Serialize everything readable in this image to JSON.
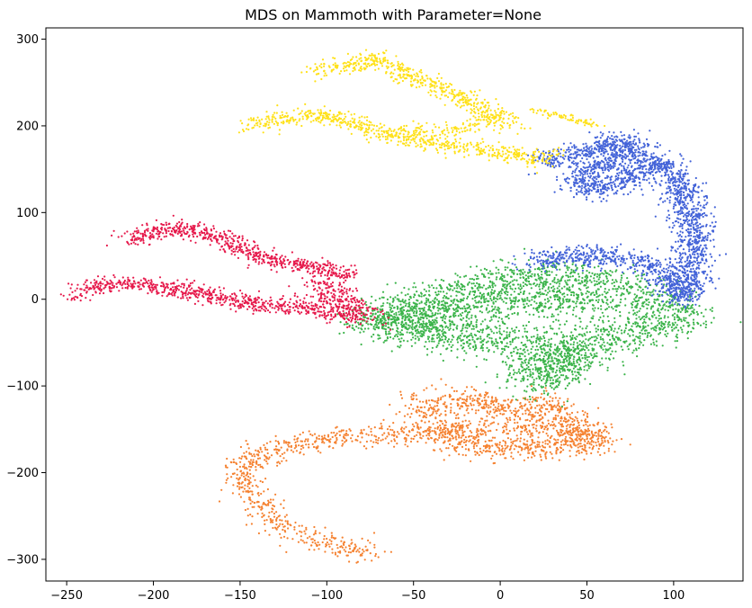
{
  "chart_data": {
    "type": "scatter",
    "title": "MDS on Mammoth with Parameter=None",
    "xlabel": "",
    "ylabel": "",
    "xlim": [
      -262,
      140
    ],
    "ylim": [
      -325,
      313
    ],
    "xticks": [
      -250,
      -200,
      -150,
      -100,
      -50,
      0,
      50,
      100
    ],
    "yticks": [
      -300,
      -200,
      -100,
      0,
      100,
      200,
      300
    ],
    "grid": false,
    "legend": "none",
    "point_radius": 1.1,
    "series": [
      {
        "color": "#f58231",
        "clusters": [
          {
            "path": [
              [
                -75,
                -292
              ],
              [
                -90,
                -285
              ],
              [
                -110,
                -275
              ],
              [
                -125,
                -262
              ],
              [
                -135,
                -245
              ],
              [
                -143,
                -228
              ],
              [
                -148,
                -210
              ],
              [
                -147,
                -192
              ],
              [
                -140,
                -180
              ],
              [
                -125,
                -170
              ],
              [
                -100,
                -162
              ],
              [
                -75,
                -157
              ],
              [
                -50,
                -155
              ],
              [
                -25,
                -152
              ],
              [
                0,
                -148
              ],
              [
                20,
                -147
              ],
              [
                45,
                -152
              ],
              [
                60,
                -163
              ]
            ],
            "count": 950,
            "spread": 6
          },
          {
            "path": [
              [
                -50,
                -128
              ],
              [
                -30,
                -120
              ],
              [
                -15,
                -115
              ],
              [
                0,
                -125
              ],
              [
                15,
                -128
              ],
              [
                25,
                -118
              ],
              [
                40,
                -140
              ],
              [
                50,
                -155
              ],
              [
                55,
                -165
              ],
              [
                30,
                -170
              ],
              [
                10,
                -172
              ],
              [
                -10,
                -170
              ],
              [
                -25,
                -165
              ],
              [
                -40,
                -140
              ]
            ],
            "count": 1000,
            "spread": 8
          }
        ]
      },
      {
        "color": "#3cb44b",
        "clusters": [
          {
            "path": [
              [
                -65,
                -30
              ],
              [
                -55,
                -10
              ],
              [
                -40,
                0
              ],
              [
                -20,
                10
              ],
              [
                0,
                20
              ],
              [
                20,
                25
              ],
              [
                40,
                28
              ],
              [
                60,
                20
              ],
              [
                80,
                5
              ],
              [
                95,
                -5
              ],
              [
                105,
                -10
              ],
              [
                100,
                -25
              ],
              [
                85,
                -35
              ],
              [
                60,
                -45
              ],
              [
                40,
                -60
              ],
              [
                25,
                -75
              ],
              [
                20,
                -95
              ],
              [
                35,
                -80
              ],
              [
                45,
                -60
              ],
              [
                20,
                -55
              ],
              [
                0,
                -50
              ],
              [
                -20,
                -45
              ],
              [
                -40,
                -35
              ],
              [
                -60,
                -30
              ],
              [
                -75,
                -25
              ],
              [
                -50,
                -20
              ],
              [
                -20,
                -15
              ],
              [
                0,
                -5
              ],
              [
                30,
                0
              ],
              [
                60,
                -5
              ]
            ],
            "count": 3200,
            "spread": 11
          }
        ]
      },
      {
        "color": "#4363d8",
        "clusters": [
          {
            "path": [
              [
                22,
                158
              ],
              [
                40,
                165
              ],
              [
                55,
                172
              ],
              [
                65,
                182
              ],
              [
                75,
                180
              ],
              [
                80,
                170
              ],
              [
                60,
                155
              ],
              [
                45,
                140
              ],
              [
                50,
                125
              ],
              [
                65,
                130
              ],
              [
                75,
                140
              ],
              [
                85,
                155
              ],
              [
                90,
                162
              ],
              [
                95,
                155
              ],
              [
                100,
                140
              ],
              [
                105,
                120
              ],
              [
                110,
                100
              ],
              [
                112,
                80
              ],
              [
                112,
                60
              ],
              [
                110,
                40
              ],
              [
                110,
                25
              ],
              [
                108,
                10
              ],
              [
                105,
                0
              ],
              [
                100,
                20
              ],
              [
                90,
                35
              ],
              [
                80,
                45
              ],
              [
                60,
                50
              ],
              [
                45,
                50
              ],
              [
                30,
                45
              ],
              [
                20,
                42
              ]
            ],
            "count": 2500,
            "spread": 6
          }
        ]
      },
      {
        "color": "#e6194b",
        "clusters": [
          {
            "path": [
              [
                -213,
                70
              ],
              [
                -200,
                77
              ],
              [
                -190,
                82
              ],
              [
                -180,
                80
              ],
              [
                -170,
                75
              ],
              [
                -160,
                68
              ],
              [
                -150,
                58
              ],
              [
                -140,
                50
              ],
              [
                -125,
                43
              ],
              [
                -110,
                38
              ],
              [
                -95,
                32
              ],
              [
                -85,
                28
              ]
            ],
            "count": 650,
            "spread": 5
          },
          {
            "path": [
              [
                -245,
                5
              ],
              [
                -235,
                12
              ],
              [
                -225,
                18
              ],
              [
                -210,
                18
              ],
              [
                -190,
                12
              ],
              [
                -170,
                5
              ],
              [
                -150,
                -3
              ],
              [
                -130,
                -6
              ],
              [
                -112,
                -10
              ],
              [
                -98,
                -15
              ],
              [
                -85,
                -20
              ]
            ],
            "count": 700,
            "spread": 5
          },
          {
            "path": [
              [
                -105,
                20
              ],
              [
                -100,
                10
              ],
              [
                -95,
                0
              ],
              [
                -90,
                -5
              ],
              [
                -82,
                -15
              ],
              [
                -78,
                -25
              ]
            ],
            "count": 250,
            "spread": 7
          }
        ]
      },
      {
        "color": "#ffe119",
        "clusters": [
          {
            "path": [
              [
                -108,
                262
              ],
              [
                -95,
                268
              ],
              [
                -80,
                272
              ],
              [
                -70,
                276
              ],
              [
                -65,
                270
              ],
              [
                -55,
                258
              ],
              [
                -40,
                248
              ],
              [
                -25,
                235
              ],
              [
                -10,
                220
              ],
              [
                0,
                205
              ]
            ],
            "count": 500,
            "spread": 5
          },
          {
            "path": [
              [
                -145,
                200
              ],
              [
                -135,
                206
              ],
              [
                -120,
                210
              ],
              [
                -105,
                213
              ],
              [
                -95,
                210
              ],
              [
                -80,
                200
              ],
              [
                -65,
                190
              ],
              [
                -45,
                182
              ],
              [
                -25,
                176
              ],
              [
                -5,
                170
              ],
              [
                10,
                165
              ],
              [
                22,
                162
              ],
              [
                30,
                168
              ]
            ],
            "count": 650,
            "spread": 5
          },
          {
            "path": [
              [
                -60,
                196
              ],
              [
                -45,
                195
              ],
              [
                -30,
                192
              ],
              [
                -15,
                200
              ],
              [
                0,
                210
              ],
              [
                10,
                198
              ]
            ],
            "count": 150,
            "spread": 5
          },
          {
            "path": [
              [
                18,
                218
              ],
              [
                30,
                213
              ],
              [
                40,
                208
              ],
              [
                50,
                204
              ],
              [
                60,
                200
              ]
            ],
            "count": 70,
            "spread": 2
          }
        ]
      }
    ]
  }
}
